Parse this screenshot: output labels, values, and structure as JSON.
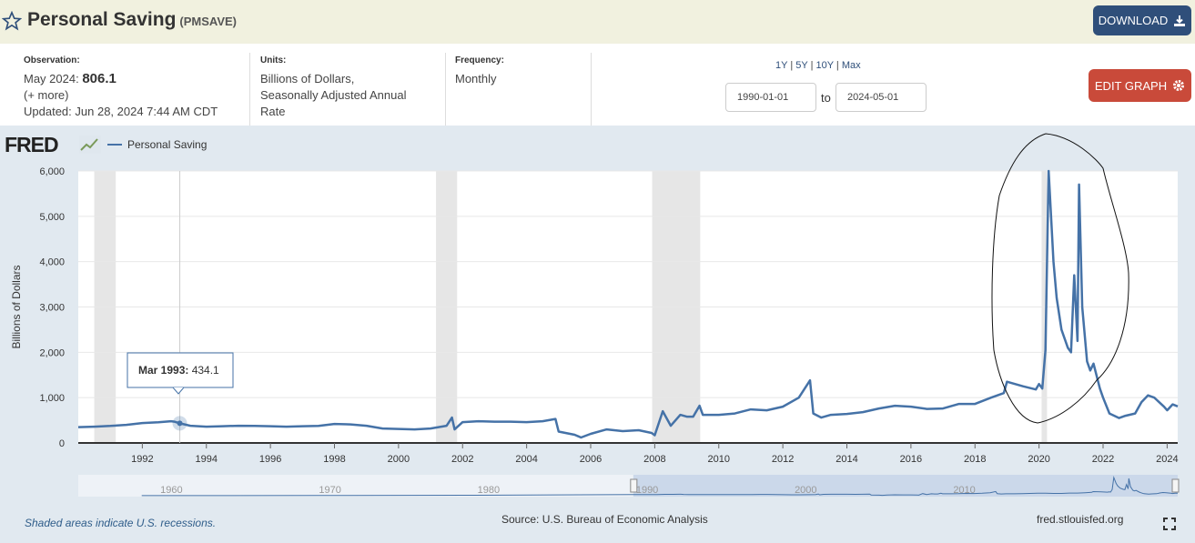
{
  "header": {
    "title": "Personal Saving",
    "series_id": "(PMSAVE)",
    "download_label": "DOWNLOAD"
  },
  "meta": {
    "observation_label": "Observation:",
    "observation_date": "May 2024:",
    "observation_value": "806.1",
    "more_label": "(+ more)",
    "updated_label": "Updated:",
    "updated_value": "Jun 28, 2024 7:44 AM CDT",
    "units_label": "Units:",
    "units_line1": "Billions of Dollars,",
    "units_line2": "Seasonally Adjusted Annual",
    "units_line3": "Rate",
    "frequency_label": "Frequency:",
    "frequency_value": "Monthly"
  },
  "controls": {
    "range_1y": "1Y",
    "range_5y": "5Y",
    "range_10y": "10Y",
    "range_max": "Max",
    "start_date": "1990-01-01",
    "to_label": "to",
    "end_date": "2024-05-01",
    "edit_label": "EDIT GRAPH"
  },
  "logo": "FRED",
  "tooltip": {
    "date": "Mar 1993:",
    "value": "434.1"
  },
  "footer": {
    "recession_note": "Shaded areas indicate U.S. recessions.",
    "source": "Source: U.S. Bureau of Economic Analysis",
    "url": "fred.stlouisfed.org"
  },
  "colors": {
    "series": "#4572a7",
    "header_bg": "#f1f1df",
    "download_bg": "#2f4f7a",
    "edit_bg": "#c94a3a",
    "recession": "#e6e6e6"
  },
  "chart_data": {
    "type": "line",
    "series": [
      {
        "name": "Personal Saving",
        "points": [
          [
            1990.0,
            350
          ],
          [
            1990.5,
            360
          ],
          [
            1991.0,
            375
          ],
          [
            1991.5,
            400
          ],
          [
            1992.0,
            440
          ],
          [
            1992.5,
            455
          ],
          [
            1992.9,
            480
          ],
          [
            1993.0,
            470
          ],
          [
            1993.17,
            434.1
          ],
          [
            1993.5,
            380
          ],
          [
            1994.0,
            360
          ],
          [
            1994.5,
            370
          ],
          [
            1995.0,
            380
          ],
          [
            1995.5,
            375
          ],
          [
            1996.0,
            370
          ],
          [
            1996.5,
            360
          ],
          [
            1997.0,
            370
          ],
          [
            1997.5,
            375
          ],
          [
            1998.0,
            420
          ],
          [
            1998.5,
            410
          ],
          [
            1999.0,
            380
          ],
          [
            1999.5,
            320
          ],
          [
            2000.0,
            310
          ],
          [
            2000.5,
            300
          ],
          [
            2001.0,
            320
          ],
          [
            2001.5,
            380
          ],
          [
            2001.67,
            560
          ],
          [
            2001.75,
            300
          ],
          [
            2002.0,
            460
          ],
          [
            2002.5,
            480
          ],
          [
            2003.0,
            470
          ],
          [
            2003.5,
            470
          ],
          [
            2004.0,
            460
          ],
          [
            2004.5,
            480
          ],
          [
            2004.9,
            530
          ],
          [
            2005.0,
            250
          ],
          [
            2005.5,
            180
          ],
          [
            2005.7,
            120
          ],
          [
            2006.0,
            200
          ],
          [
            2006.5,
            300
          ],
          [
            2007.0,
            260
          ],
          [
            2007.5,
            280
          ],
          [
            2007.9,
            220
          ],
          [
            2008.0,
            170
          ],
          [
            2008.25,
            700
          ],
          [
            2008.5,
            380
          ],
          [
            2008.8,
            620
          ],
          [
            2009.0,
            580
          ],
          [
            2009.2,
            580
          ],
          [
            2009.4,
            820
          ],
          [
            2009.5,
            620
          ],
          [
            2010.0,
            620
          ],
          [
            2010.5,
            650
          ],
          [
            2011.0,
            740
          ],
          [
            2011.5,
            720
          ],
          [
            2012.0,
            800
          ],
          [
            2012.5,
            1000
          ],
          [
            2012.85,
            1380
          ],
          [
            2012.95,
            650
          ],
          [
            2013.2,
            560
          ],
          [
            2013.5,
            620
          ],
          [
            2014.0,
            640
          ],
          [
            2014.5,
            680
          ],
          [
            2015.0,
            760
          ],
          [
            2015.5,
            820
          ],
          [
            2016.0,
            800
          ],
          [
            2016.5,
            750
          ],
          [
            2017.0,
            760
          ],
          [
            2017.5,
            860
          ],
          [
            2018.0,
            860
          ],
          [
            2018.5,
            1000
          ],
          [
            2018.9,
            1100
          ],
          [
            2019.0,
            1350
          ],
          [
            2019.5,
            1250
          ],
          [
            2019.9,
            1180
          ],
          [
            2020.0,
            1300
          ],
          [
            2020.1,
            1200
          ],
          [
            2020.2,
            2050
          ],
          [
            2020.3,
            6000
          ],
          [
            2020.45,
            4000
          ],
          [
            2020.55,
            3200
          ],
          [
            2020.7,
            2500
          ],
          [
            2020.9,
            2100
          ],
          [
            2021.0,
            2000
          ],
          [
            2021.1,
            3700
          ],
          [
            2021.2,
            2250
          ],
          [
            2021.25,
            5700
          ],
          [
            2021.35,
            3000
          ],
          [
            2021.5,
            1800
          ],
          [
            2021.6,
            1600
          ],
          [
            2021.7,
            1750
          ],
          [
            2021.9,
            1200
          ],
          [
            2022.0,
            1000
          ],
          [
            2022.2,
            650
          ],
          [
            2022.5,
            550
          ],
          [
            2022.7,
            600
          ],
          [
            2023.0,
            650
          ],
          [
            2023.2,
            900
          ],
          [
            2023.4,
            1050
          ],
          [
            2023.6,
            1000
          ],
          [
            2023.9,
            800
          ],
          [
            2024.0,
            720
          ],
          [
            2024.17,
            850
          ],
          [
            2024.33,
            806.1
          ]
        ]
      }
    ],
    "recessions": [
      [
        1990.5,
        1991.17
      ],
      [
        2001.17,
        2001.83
      ],
      [
        2007.92,
        2009.42
      ],
      [
        2020.08,
        2020.25
      ]
    ],
    "xlim": [
      1990.0,
      2024.33
    ],
    "ylim": [
      0,
      6000
    ],
    "y_ticks": [
      "0",
      "1,000",
      "2,000",
      "3,000",
      "4,000",
      "5,000",
      "6,000"
    ],
    "x_ticks": [
      "1992",
      "1994",
      "1996",
      "1998",
      "2000",
      "2002",
      "2004",
      "2006",
      "2008",
      "2010",
      "2012",
      "2014",
      "2016",
      "2018",
      "2020",
      "2022",
      "2024"
    ],
    "ylabel": "Billions of Dollars",
    "navigator_ticks": [
      "1960",
      "1970",
      "1980",
      "1990",
      "2000",
      "2010"
    ]
  }
}
